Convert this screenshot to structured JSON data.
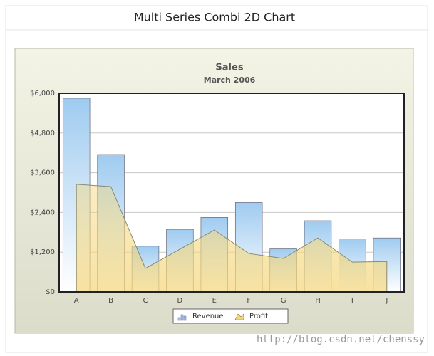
{
  "page_title": "Multi Series Combi 2D Chart",
  "watermark": "http://blog.csdn.net/chenssy",
  "chart_data": {
    "type": "combi",
    "title": "Sales",
    "subtitle": "March 2006",
    "categories": [
      "A",
      "B",
      "C",
      "D",
      "E",
      "F",
      "G",
      "H",
      "I",
      "J"
    ],
    "series": [
      {
        "name": "Revenue",
        "type": "bar",
        "color": "#9fcbf0",
        "values": [
          5850,
          4150,
          1380,
          1890,
          2250,
          2700,
          1300,
          2150,
          1600,
          1630
        ]
      },
      {
        "name": "Profit",
        "type": "area",
        "color": "#f5d77c",
        "values": [
          3250,
          3180,
          710,
          1290,
          1870,
          1160,
          1010,
          1630,
          900,
          920
        ]
      }
    ],
    "ylim": [
      0,
      6000
    ],
    "yticks": [
      {
        "value": 0,
        "label": "$0"
      },
      {
        "value": 1200,
        "label": "$1,200"
      },
      {
        "value": 2400,
        "label": "$2,400"
      },
      {
        "value": 3600,
        "label": "$3,600"
      },
      {
        "value": 4800,
        "label": "$4,800"
      },
      {
        "value": 6000,
        "label": "$6,000"
      }
    ],
    "grid": true,
    "legend": "bottom"
  }
}
